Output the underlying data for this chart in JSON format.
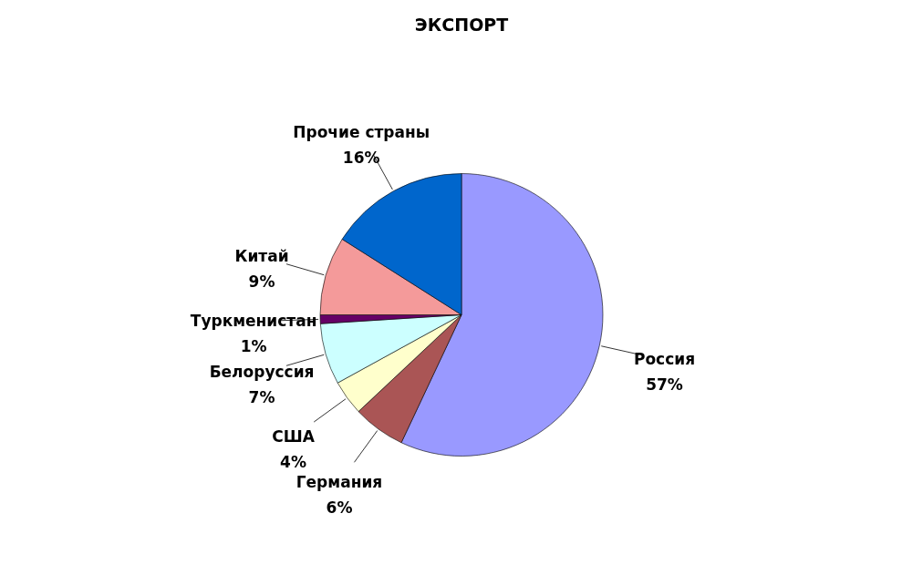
{
  "chart_data": {
    "type": "pie",
    "title": "ЭКСПОРТ",
    "categories": [
      "Россия",
      "Германия",
      "США",
      "Белоруссия",
      "Туркменистан",
      "Китай",
      "Прочие страны"
    ],
    "values": [
      57,
      6,
      4,
      7,
      1,
      9,
      16
    ],
    "value_labels": [
      "57%",
      "6%",
      "4%",
      "7%",
      "1%",
      "9%",
      "16%"
    ],
    "colors": [
      "#9999ff",
      "#aa5555",
      "#ffffcc",
      "#ccffff",
      "#660066",
      "#f49a9a",
      "#0066cc"
    ]
  }
}
